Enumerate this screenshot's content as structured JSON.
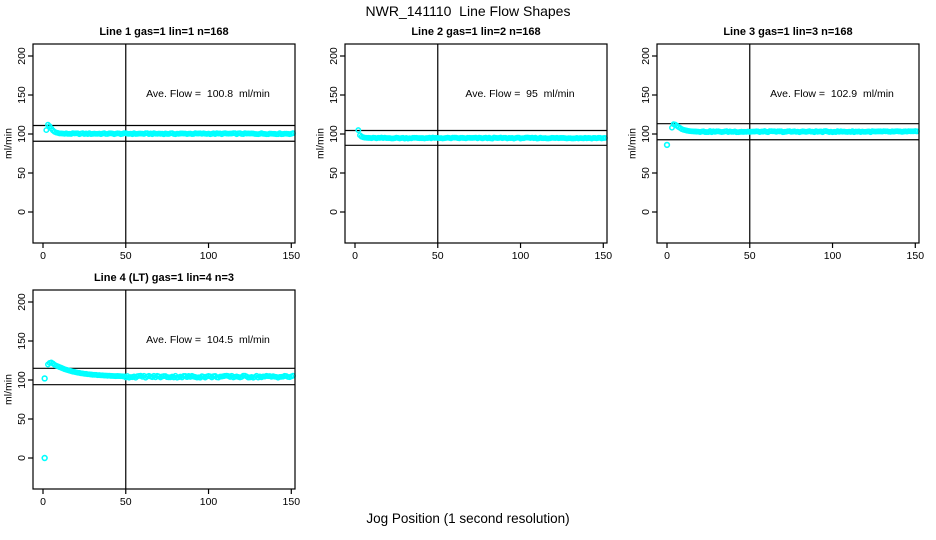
{
  "page": {
    "main_title": "NWR_141110  Line Flow Shapes",
    "x_axis_label": "Jog Position (1 second resolution)",
    "background_color": "#ffffff",
    "axis_color": "#000000",
    "point_color": "#00ffff"
  },
  "chart_data": [
    {
      "type": "scatter",
      "title": "Line 1 gas=1 lin=1 n=168",
      "annotation": "Ave. Flow =  100.8  ml/min",
      "ave_flow_ml_min": 100.8,
      "n": 168,
      "ylabel": "ml/min",
      "x_ticks": [
        0,
        50,
        100,
        150
      ],
      "y_ticks": [
        0,
        50,
        100,
        150,
        200
      ],
      "xlim": [
        -6,
        152
      ],
      "ylim": [
        -42,
        213
      ],
      "grid": false,
      "vline_x": 50,
      "ref_lines": [
        110.9,
        90.7
      ],
      "series": {
        "x_start": 2,
        "x_end": 151,
        "x_step": 1,
        "profile_keypoints": [
          [
            2,
            105
          ],
          [
            3,
            112
          ],
          [
            4,
            110
          ],
          [
            5,
            107
          ],
          [
            6,
            104.5
          ],
          [
            7,
            102.8
          ],
          [
            8,
            101.8
          ],
          [
            10,
            100.9
          ],
          [
            13,
            100.4
          ]
        ],
        "steady_value": 100.4,
        "noise_from_x": 13,
        "noise_amp": 0.7
      },
      "outliers": []
    },
    {
      "type": "scatter",
      "title": "Line 2 gas=1 lin=2 n=168",
      "annotation": "Ave. Flow =  95  ml/min",
      "ave_flow_ml_min": 95,
      "n": 168,
      "ylabel": "ml/min",
      "x_ticks": [
        0,
        50,
        100,
        150
      ],
      "y_ticks": [
        0,
        50,
        100,
        150,
        200
      ],
      "xlim": [
        -6,
        152
      ],
      "ylim": [
        -42,
        213
      ],
      "grid": false,
      "vline_x": 50,
      "ref_lines": [
        104.5,
        85.5
      ],
      "series": {
        "x_start": 2,
        "x_end": 151,
        "x_step": 1,
        "profile_keypoints": [
          [
            2,
            105
          ],
          [
            3,
            98.5
          ],
          [
            4,
            96.5
          ],
          [
            5,
            95.8
          ],
          [
            6,
            95.3
          ],
          [
            8,
            95
          ],
          [
            10,
            94.8
          ]
        ],
        "steady_value": 94.8,
        "noise_from_x": 10,
        "noise_amp": 0.6
      },
      "outliers": []
    },
    {
      "type": "scatter",
      "title": "Line 3 gas=1 lin=3 n=168",
      "annotation": "Ave. Flow =  102.9  ml/min",
      "ave_flow_ml_min": 102.9,
      "n": 168,
      "ylabel": "ml/min",
      "x_ticks": [
        0,
        50,
        100,
        150
      ],
      "y_ticks": [
        0,
        50,
        100,
        150,
        200
      ],
      "xlim": [
        -6,
        152
      ],
      "ylim": [
        -42,
        213
      ],
      "grid": false,
      "vline_x": 50,
      "ref_lines": [
        113.2,
        92.6
      ],
      "series": {
        "x_start": 3,
        "x_end": 151,
        "x_step": 1,
        "profile_keypoints": [
          [
            3,
            108
          ],
          [
            4,
            112.5
          ],
          [
            5,
            112
          ],
          [
            6,
            110.5
          ],
          [
            7,
            109
          ],
          [
            8,
            107.5
          ],
          [
            9,
            106.3
          ],
          [
            10,
            105.4
          ],
          [
            12,
            104.3
          ],
          [
            14,
            103.7
          ],
          [
            16,
            103.3
          ],
          [
            20,
            103
          ]
        ],
        "steady_value": 103,
        "noise_from_x": 20,
        "noise_amp": 0.7
      },
      "outliers": [
        [
          0,
          86
        ]
      ]
    },
    {
      "type": "scatter",
      "title": "Line 4 (LT) gas=1 lin=4 n=3",
      "annotation": "Ave. Flow =  104.5  ml/min",
      "ave_flow_ml_min": 104.5,
      "n": 3,
      "ylabel": "ml/min",
      "x_ticks": [
        0,
        50,
        100,
        150
      ],
      "y_ticks": [
        0,
        50,
        100,
        150,
        200
      ],
      "xlim": [
        -6,
        152
      ],
      "ylim": [
        -42,
        213
      ],
      "grid": false,
      "vline_x": 50,
      "ref_lines": [
        115.0,
        94.0
      ],
      "series": {
        "x_start": 3,
        "x_end": 151,
        "x_step": 1,
        "profile_keypoints": [
          [
            3,
            120
          ],
          [
            4,
            122
          ],
          [
            5,
            122.5
          ],
          [
            6,
            121
          ],
          [
            7,
            119.5
          ],
          [
            8,
            118.5
          ],
          [
            9,
            117.5
          ],
          [
            10,
            116.5
          ],
          [
            12,
            114.8
          ],
          [
            14,
            113.3
          ],
          [
            16,
            112
          ],
          [
            18,
            110.8
          ],
          [
            20,
            109.8
          ],
          [
            23,
            108.6
          ],
          [
            26,
            107.7
          ],
          [
            30,
            106.8
          ],
          [
            35,
            106
          ],
          [
            40,
            105.4
          ],
          [
            45,
            105
          ],
          [
            50,
            104.7
          ]
        ],
        "steady_value": 104.3,
        "noise_from_x": 50,
        "noise_amp": 1.4
      },
      "outliers": [
        [
          1,
          102
        ],
        [
          1,
          0
        ]
      ]
    }
  ]
}
